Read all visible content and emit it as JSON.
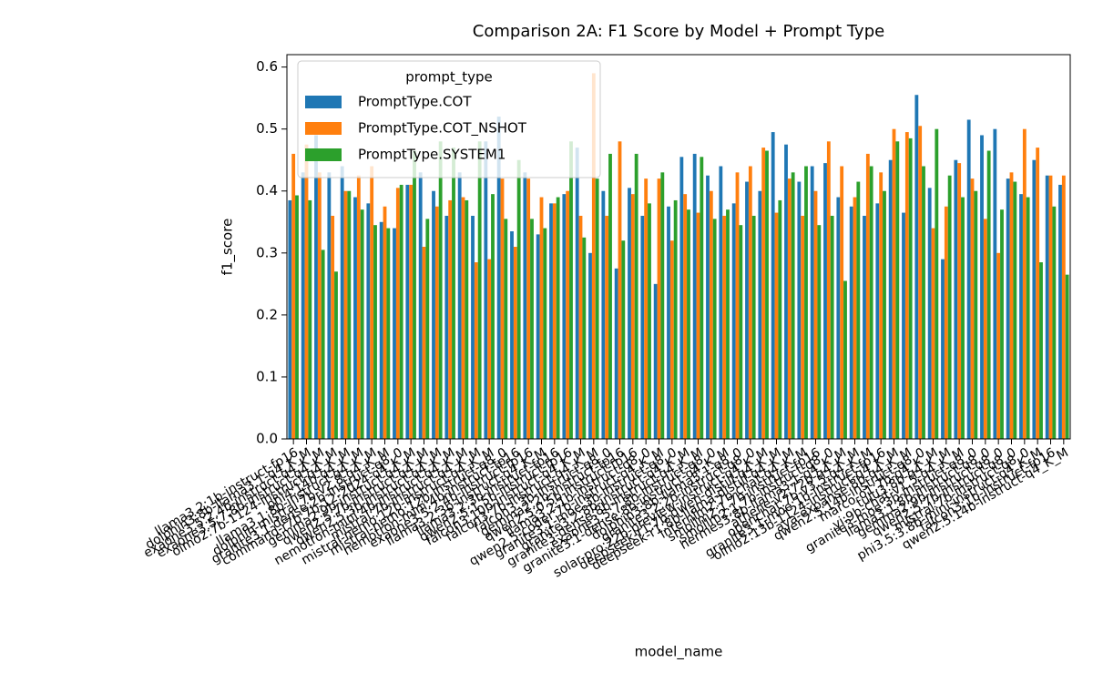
{
  "chart_data": {
    "type": "bar",
    "title": "Comparison 2A: F1 Score by Model + Prompt Type",
    "x_label": "model_name",
    "y_label": "f1_score",
    "legend_title": "prompt_type",
    "legend_position": "upper left",
    "ylim": [
      0,
      0.62
    ],
    "yticks": [
      {
        "value": 0,
        "label": "0.0"
      },
      {
        "value": 0.1,
        "label": "0.1"
      },
      {
        "value": 0.2,
        "label": "0.2"
      },
      {
        "value": 0.3,
        "label": "0.3"
      },
      {
        "value": 0.4,
        "label": "0.4"
      },
      {
        "value": 0.5,
        "label": "0.5"
      },
      {
        "value": 0.6,
        "label": "0.6"
      }
    ],
    "categories": [
      "llama3.2:1b-instruct-fp16",
      "dolphin3:8b-llama3.1-q4_K_M",
      "exaone3.5:2.4b-instruct-q4_K_M",
      "exaone3.5:7.8b-instruct-q4_K_M",
      "olmo2:7b-1124-instruct-q4_K_M",
      "phi4:14b-q4_K_M",
      "llama3.1:8b-instruct-q4_K_M",
      "dolphin-mistral:7b-v2.8-q4_K_M",
      "granite3.1-dense:2b-instruct-q8_0",
      "command-r7b:7b-12-2024-q4_K_M",
      "gemma2:9b-instruct-q4_K_M",
      "qwen2.5:7b-instruct-q4_K_M",
      "qwen2.5:3b-instruct-q4_K_M",
      "nemotron-mini:4b-instruct-q4_K_M",
      "mistral:7b-instruct-q4_K_M",
      "mistral-nemo:12b-instruct-q4_K_M",
      "mistral-nemo:12b-instruct-q8_0",
      "nemotron-mini:4b-instruct-fp16",
      "exaone3.5:2.4b-instruct-fp16",
      "llama3.2:3b-instruct-q4_K_M",
      "llama3.2:3b-instruct-fp16",
      "qwen2.5:1.5b-instruct-fp16",
      "falcon3:10b-instruct-q4_K_M",
      "falcon3:7b-instruct-q4_K_M",
      "falcon3:3b-instruct-q8_0",
      "gemma2:2b-instruct-fp16",
      "qwen2.5:0.5b-instruct-fp16",
      "llama3.2:1b-instruct-q8_0",
      "qwen2.5-coder:7b-instruct-q4_K_M",
      "granite3.1-moe:3b-instruct-q8_0",
      "granite3.2:8b-instruct-q4_K_M",
      "granite3-dense:8b-instruct-q4_K_M",
      "exaone3.5:7.8b-instruct-q8_0",
      "granite3.1-dense:8b-instruct-q4_K_M",
      "dolphin3:8b-llama3.1-q8_0",
      "granite3.2:2b-instruct-q8_0",
      "solar-pro:22b-preview-instruct-q4_K_M",
      "deepseek-r1:7b-qwen-distill-q4_K_M",
      "deepseek-r1:8b-llama-distill-q4_K_M",
      "internlm2:7b-chat-q4_K_M",
      "smollm2:1.7b-instruct-fp16",
      "smollm2:1.7b-instruct-q8_0",
      "hermes3:8b-llama3.1-q4_K_M",
      "athene-v2:72b-q4_K_M",
      "openchat:7b-v3.5-q4_K_M",
      "granite3.1-moe:1b-instruct-fp16",
      "olmo2:13b-1124-instruct-q4_K_M",
      "aya-expanse:8b-q4_K_M",
      "qwen2.5:14b-instruct-q8_0",
      "marco-o1:7b-q4_K_M",
      "tulu3:8b-q4_K_M",
      "yi:9b-chat-v1.5-q4_K_M",
      "granite3-moe:3b-instruct-q8_0",
      "llama3.1:8b-instruct-q8_0",
      "gemma2:9b-instruct-q8_0",
      "qwen2.5:7b-instruct-q8_0",
      "mistral:7b-instruct-q8_0",
      "phi3.5:3.8b-mini-instruct-q4_K_M",
      "falcon3:1b-instruct-fp16",
      "qwen2.5:14b-instruct-q4_K_M"
    ],
    "series": [
      {
        "name": "PromptType.COT",
        "color": "#1f77b4",
        "values": [
          0.385,
          0.43,
          0.49,
          0.43,
          0.44,
          0.39,
          0.38,
          0.35,
          0.34,
          0.41,
          0.43,
          0.4,
          0.36,
          0.43,
          0.36,
          0.48,
          0.52,
          0.335,
          0.43,
          0.33,
          0.38,
          0.395,
          0.47,
          0.3,
          0.4,
          0.275,
          0.405,
          0.36,
          0.25,
          0.375,
          0.455,
          0.46,
          0.425,
          0.44,
          0.38,
          0.415,
          0.4,
          0.495,
          0.475,
          0.415,
          0.44,
          0.445,
          0.39,
          0.375,
          0.36,
          0.38,
          0.45,
          0.365,
          0.555,
          0.405,
          0.29,
          0.45,
          0.515,
          0.49,
          0.5,
          0.42,
          0.395,
          0.45,
          0.425,
          0.41
        ]
      },
      {
        "name": "PromptType.COT_NSHOT",
        "color": "#ff7f0e",
        "values": [
          0.46,
          0.475,
          0.43,
          0.36,
          0.4,
          0.425,
          0.44,
          0.375,
          0.405,
          0.41,
          0.31,
          0.375,
          0.385,
          0.39,
          0.285,
          0.29,
          0.42,
          0.31,
          0.42,
          0.39,
          0.38,
          0.4,
          0.36,
          0.59,
          0.36,
          0.48,
          0.395,
          0.42,
          0.42,
          0.32,
          0.395,
          0.365,
          0.4,
          0.36,
          0.43,
          0.44,
          0.47,
          0.365,
          0.42,
          0.36,
          0.4,
          0.48,
          0.44,
          0.39,
          0.46,
          0.43,
          0.5,
          0.495,
          0.505,
          0.34,
          0.375,
          0.445,
          0.42,
          0.355,
          0.3,
          0.43,
          0.5,
          0.47,
          0.425,
          0.425
        ]
      },
      {
        "name": "PromptType.SYSTEM1",
        "color": "#2ca02c",
        "values": [
          0.393,
          0.385,
          0.305,
          0.27,
          0.4,
          0.37,
          0.345,
          0.34,
          0.41,
          0.465,
          0.355,
          0.48,
          0.47,
          0.385,
          0.48,
          0.395,
          0.355,
          0.45,
          0.355,
          0.34,
          0.39,
          0.48,
          0.325,
          0.42,
          0.46,
          0.32,
          0.46,
          0.38,
          0.43,
          0.385,
          0.37,
          0.455,
          0.355,
          0.37,
          0.345,
          0.36,
          0.465,
          0.385,
          0.43,
          0.44,
          0.345,
          0.36,
          0.255,
          0.415,
          0.44,
          0.4,
          0.48,
          0.485,
          0.44,
          0.5,
          0.425,
          0.39,
          0.4,
          0.465,
          0.37,
          0.415,
          0.39,
          0.285,
          0.375,
          0.265
        ]
      }
    ]
  }
}
